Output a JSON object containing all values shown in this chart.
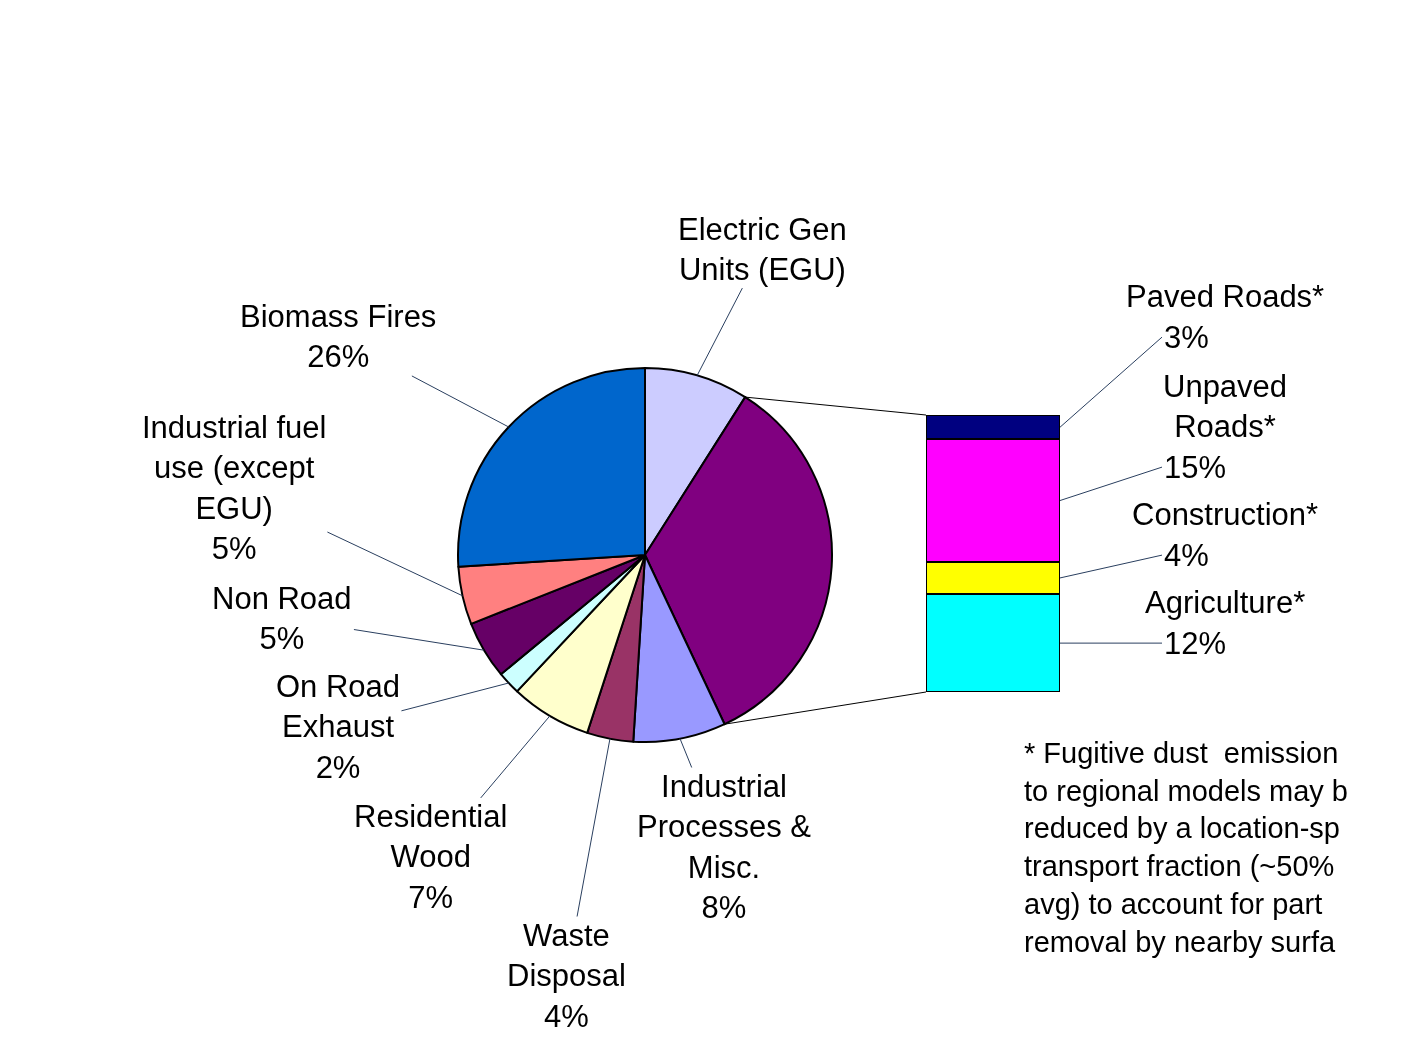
{
  "chart_data": [
    {
      "type": "pie",
      "categories": [
        "Electric Gen\nUnits (EGU)",
        null,
        "Industrial\nProcesses &\nMisc.",
        "Waste\nDisposal",
        "Residential\nWood",
        "On Road\nExhaust",
        "Non Road",
        "Industrial fuel\nuse (except\nEGU)",
        "Biomass Fires"
      ],
      "values": [
        9,
        34,
        8,
        4,
        7,
        2,
        5,
        5,
        26
      ],
      "value_labels": [
        null,
        null,
        "8%",
        "4%",
        "7%",
        "2%",
        "5%",
        "5%",
        "26%"
      ],
      "colors": [
        "#ccccff",
        "#800080",
        "#9999ff",
        "#993366",
        "#ffffcc",
        "#ccffff",
        "#660066",
        "#ff8080",
        "#0066cc"
      ],
      "annotations": [
        "* Fugitive dust  emission\nto regional models may b\nreduced by a location-sp\ntransport fraction (~50%\navg) to account for part\nremoval by nearby surfa"
      ]
    },
    {
      "type": "bar",
      "stacked": true,
      "categories": [
        null
      ],
      "series": [
        {
          "name": "Agriculture*",
          "color": "#00ffff",
          "values": [
            12
          ],
          "value_labels": [
            "12%"
          ]
        },
        {
          "name": "Construction*",
          "color": "#ffff00",
          "values": [
            4
          ],
          "value_labels": [
            "4%"
          ]
        },
        {
          "name": "Unpaved\nRoads*",
          "color": "#ff00ff",
          "values": [
            15
          ],
          "value_labels": [
            "15%"
          ]
        },
        {
          "name": "Paved Roads*",
          "color": "#000080",
          "values": [
            3
          ],
          "value_labels": [
            "3%"
          ]
        }
      ]
    }
  ]
}
